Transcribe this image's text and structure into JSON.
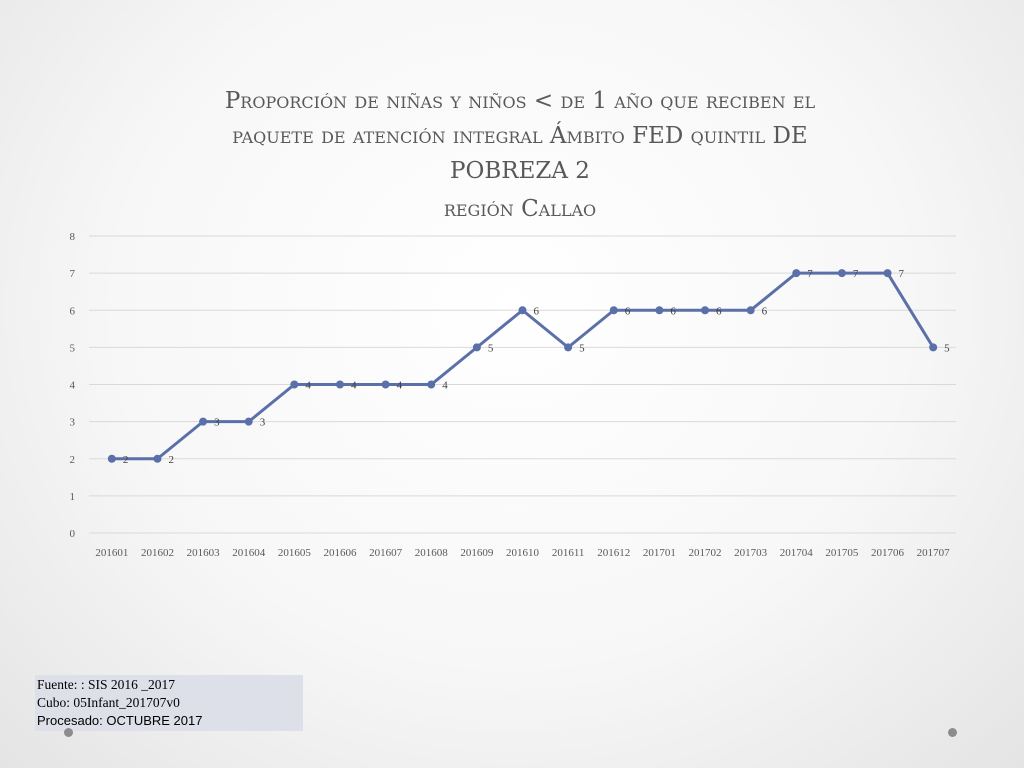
{
  "title": {
    "line1": "Proporción de niñas y niños < de 1 año que reciben el",
    "line2": "paquete de atención integral Ámbito FED quintil DE",
    "line3": "POBREZA  2",
    "line4": "región Callao"
  },
  "source": {
    "line1": "Fuente: : SIS 2016 _2017",
    "line2": "Cubo:  05Infant_201707v0",
    "line3": "Procesado: OCTUBRE 2017"
  },
  "colors": {
    "series": "#5b6fa8",
    "grid": "#d9d9d9"
  },
  "chart_data": {
    "type": "line",
    "title": "Proporción de niñas y niños < de 1 año que reciben el paquete de atención integral Ámbito FED quintil DE POBREZA 2 región Callao",
    "categories": [
      "201601",
      "201602",
      "201603",
      "201604",
      "201605",
      "201606",
      "201607",
      "201608",
      "201609",
      "201610",
      "201611",
      "201612",
      "201701",
      "201702",
      "201703",
      "201704",
      "201705",
      "201706",
      "201707"
    ],
    "series": [
      {
        "values": [
          2,
          2,
          3,
          3,
          4,
          4,
          4,
          4,
          5,
          6,
          5,
          6,
          6,
          6,
          6,
          7,
          7,
          7,
          5
        ]
      }
    ],
    "ylim": [
      0,
      8
    ],
    "yticks": [
      0,
      1,
      2,
      3,
      4,
      5,
      6,
      7,
      8
    ],
    "grid": true,
    "data_labels": true,
    "legend": "none"
  }
}
